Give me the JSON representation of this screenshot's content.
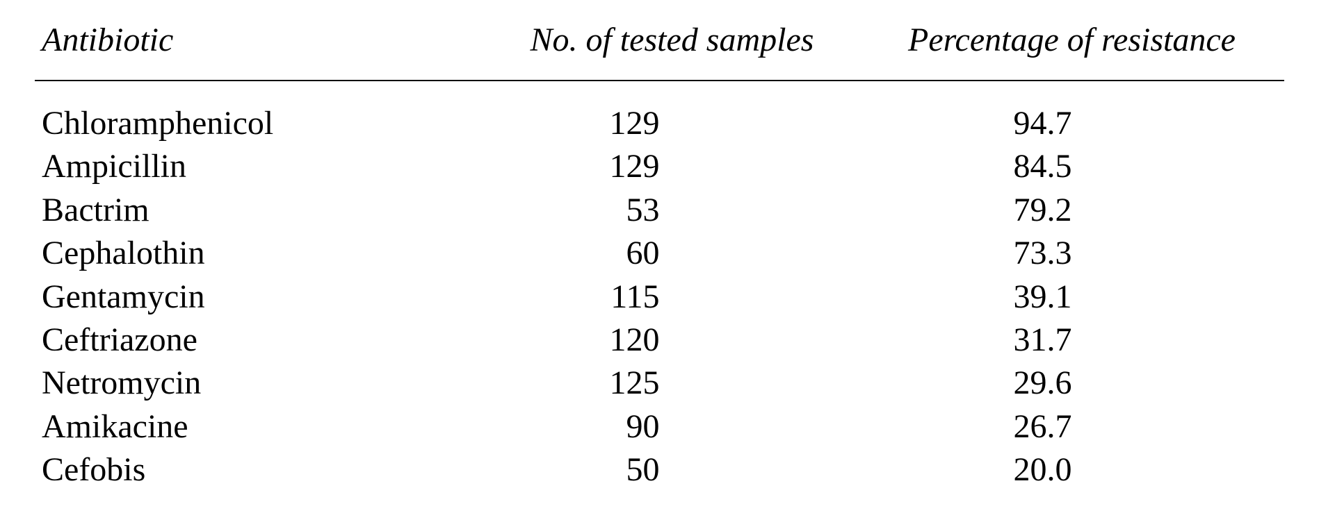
{
  "table": {
    "type": "table",
    "background_color": "#ffffff",
    "text_color": "#000000",
    "border_color": "#000000",
    "font_family": "Times New Roman",
    "header_font_style": "italic",
    "header_fontsize": 48,
    "body_fontsize": 48,
    "columns": [
      {
        "key": "antibiotic",
        "label": "Antibiotic",
        "align": "left",
        "width_pct": 36
      },
      {
        "key": "tested",
        "label": "No. of tested samples",
        "align": "center",
        "width_pct": 30
      },
      {
        "key": "resistance",
        "label": "Percentage of resistance",
        "align": "center",
        "width_pct": 34
      }
    ],
    "rows": [
      {
        "antibiotic": "Chloramphenicol",
        "tested": "129",
        "resistance": "94.7"
      },
      {
        "antibiotic": "Ampicillin",
        "tested": "129",
        "resistance": "84.5"
      },
      {
        "antibiotic": "Bactrim",
        "tested": "53",
        "resistance": "79.2"
      },
      {
        "antibiotic": "Cephalothin",
        "tested": "60",
        "resistance": "73.3"
      },
      {
        "antibiotic": "Gentamycin",
        "tested": "115",
        "resistance": "39.1"
      },
      {
        "antibiotic": "Ceftriazone",
        "tested": "120",
        "resistance": "31.7"
      },
      {
        "antibiotic": "Netromycin",
        "tested": "125",
        "resistance": "29.6"
      },
      {
        "antibiotic": "Amikacine",
        "tested": "90",
        "resistance": "26.7"
      },
      {
        "antibiotic": "Cefobis",
        "tested": "50",
        "resistance": "20.0"
      }
    ]
  }
}
